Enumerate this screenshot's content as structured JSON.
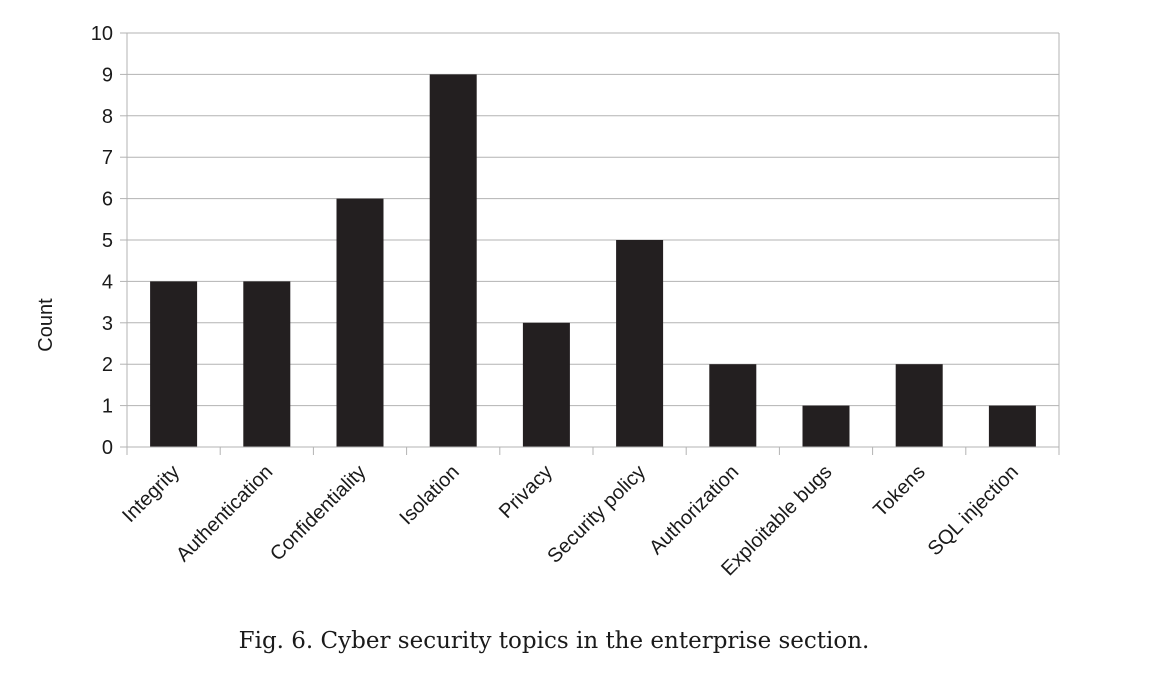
{
  "caption": "Fig. 6.  Cyber security topics in the enterprise section.",
  "chart_data": {
    "type": "bar",
    "categories": [
      "Integrity",
      "Authentication",
      "Confidentiality",
      "Isolation",
      "Privacy",
      "Security policy",
      "Authorization",
      "Exploitable bugs",
      "Tokens",
      "SQL injection"
    ],
    "values": [
      4,
      4,
      6,
      9,
      3,
      5,
      2,
      1,
      2,
      1
    ],
    "ylabel": "Count",
    "xlabel": "",
    "ylim": [
      0,
      10
    ],
    "yticks": [
      0,
      1,
      2,
      3,
      4,
      5,
      6,
      7,
      8,
      9,
      10
    ],
    "grid": true,
    "legend": "none",
    "colors": {
      "bar": "#231f20",
      "grid": "#b3b3b3",
      "axis": "#b3b3b3"
    }
  }
}
